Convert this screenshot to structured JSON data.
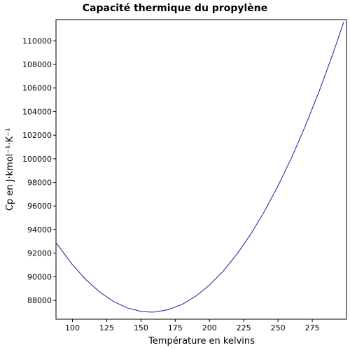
{
  "chart_data": {
    "type": "line",
    "title": "Capacité thermique du propylène",
    "x_label": "Température en kelvins",
    "y_label": "Cp en J·kmol⁻¹·K⁻¹",
    "x": [
      88,
      100,
      110,
      120,
      130,
      140,
      150,
      157,
      160,
      170,
      180,
      190,
      200,
      210,
      220,
      230,
      240,
      250,
      260,
      270,
      280,
      290,
      298
    ],
    "series": [
      {
        "name": "Cp",
        "color": "#1a1a9c",
        "values": [
          92890,
          91020,
          89730,
          88690,
          87900,
          87360,
          87060,
          87000,
          87010,
          87210,
          87650,
          88350,
          89290,
          90470,
          91910,
          93590,
          95520,
          97700,
          100120,
          102800,
          105710,
          108880,
          111600
        ]
      }
    ],
    "xlim": [
      88,
      300
    ],
    "ylim": [
      86400,
      111800
    ],
    "xticks": [
      100,
      125,
      150,
      175,
      200,
      225,
      250,
      275
    ],
    "yticks": [
      88000,
      90000,
      92000,
      94000,
      96000,
      98000,
      100000,
      102000,
      104000,
      106000,
      108000,
      110000
    ],
    "grid": false
  }
}
